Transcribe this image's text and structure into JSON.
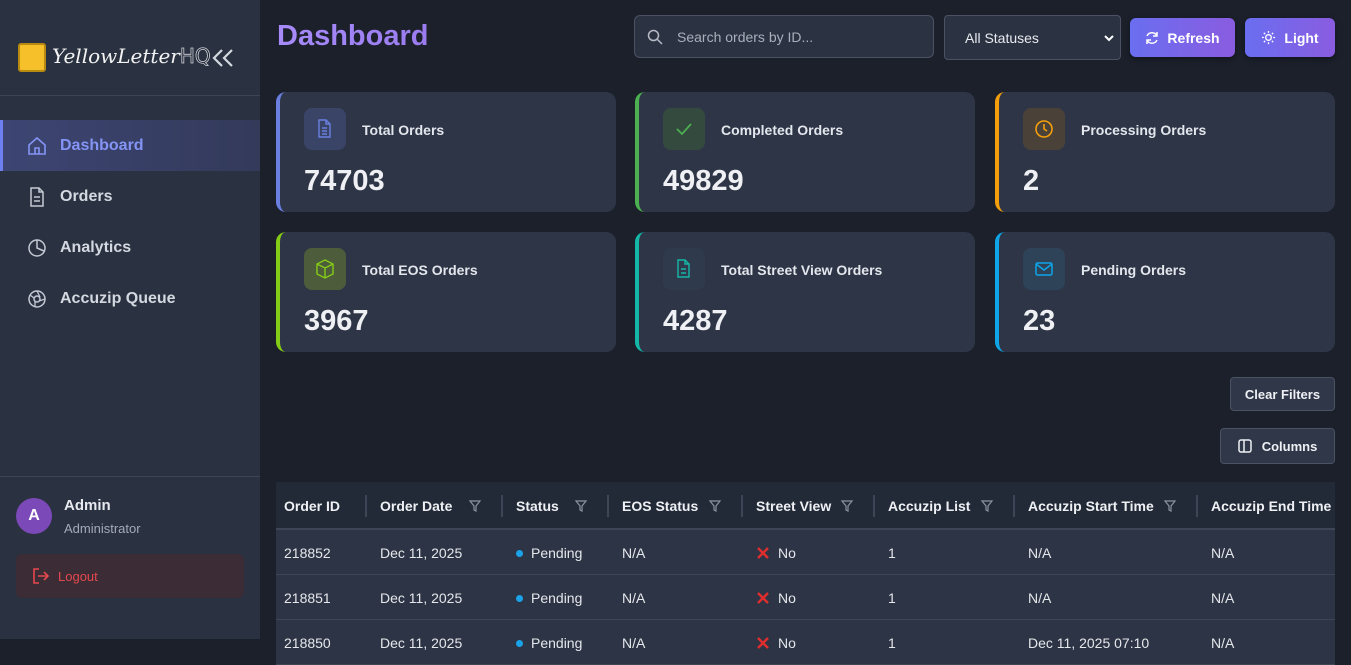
{
  "sidebar": {
    "logo": {
      "name": "YellowLetter",
      "suffix": "HQ"
    },
    "nav": [
      {
        "label": "Dashboard",
        "active": true
      },
      {
        "label": "Orders",
        "active": false
      },
      {
        "label": "Analytics",
        "active": false
      },
      {
        "label": "Accuzip Queue",
        "active": false
      }
    ],
    "user": {
      "initial": "A",
      "name": "Admin",
      "role": "Administrator"
    },
    "logout": "Logout"
  },
  "header": {
    "title": "Dashboard",
    "search_placeholder": "Search orders by ID...",
    "status_filter": "All Statuses",
    "refresh": "Refresh",
    "theme": "Light"
  },
  "stats": [
    {
      "label": "Total Orders",
      "value": 74703
    },
    {
      "label": "Completed Orders",
      "value": 49829
    },
    {
      "label": "Processing Orders",
      "value": 2
    },
    {
      "label": "Total EOS Orders",
      "value": 3967
    },
    {
      "label": "Total Street View Orders",
      "value": 4287
    },
    {
      "label": "Pending Orders",
      "value": 23
    }
  ],
  "toolbar": {
    "clear_filters": "Clear Filters",
    "columns": "Columns"
  },
  "table": {
    "columns": [
      {
        "label": "Order ID",
        "filterable": false
      },
      {
        "label": "Order Date",
        "filterable": true
      },
      {
        "label": "Status",
        "filterable": true
      },
      {
        "label": "EOS Status",
        "filterable": true
      },
      {
        "label": "Street View",
        "filterable": true
      },
      {
        "label": "Accuzip List",
        "filterable": true
      },
      {
        "label": "Accuzip Start Time",
        "filterable": true
      },
      {
        "label": "Accuzip End Time",
        "filterable": false
      }
    ],
    "rows": [
      [
        "218852",
        "Dec 11, 2025",
        "Pending",
        "N/A",
        "No",
        "1",
        "N/A",
        "N/A"
      ],
      [
        "218851",
        "Dec 11, 2025",
        "Pending",
        "N/A",
        "No",
        "1",
        "N/A",
        "N/A"
      ],
      [
        "218850",
        "Dec 11, 2025",
        "Pending",
        "N/A",
        "No",
        "1",
        "Dec 11, 2025 07:10",
        "N/A"
      ]
    ]
  }
}
